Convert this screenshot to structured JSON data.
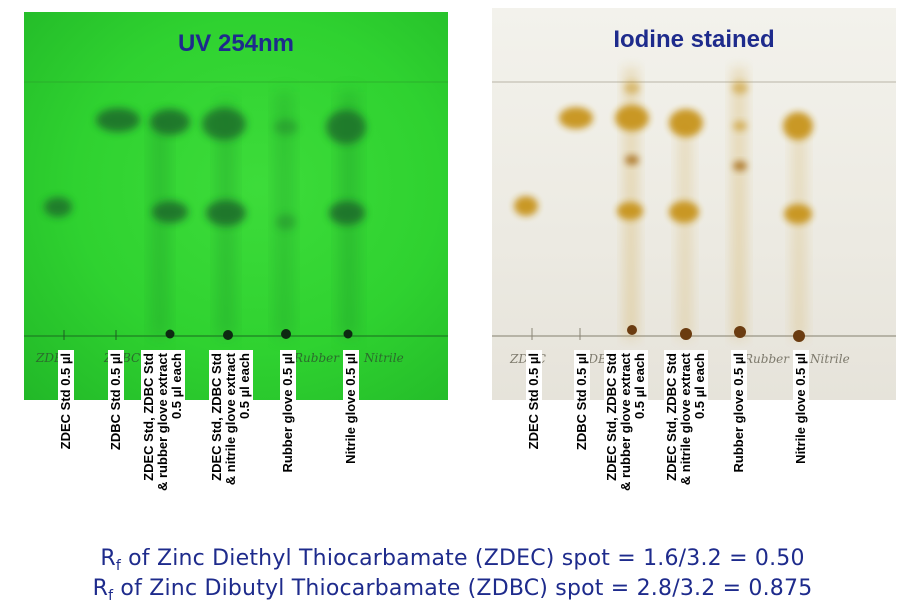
{
  "uv_panel": {
    "title": "UV 254nm",
    "handwriting": [
      "ZDEC",
      "ZDBC",
      "Rubber",
      "Nitrile"
    ],
    "colors": {
      "background": "#33d633",
      "spot": "#1f6b2a"
    },
    "lanes": [
      {
        "label": "ZDEC Std 0.5 µl"
      },
      {
        "label": "ZDBC Std 0.5 µl"
      },
      {
        "label": "ZDEC Std, ZDBC Std\n& rubber glove extract\n0.5 µl each"
      },
      {
        "label": "ZDEC Std, ZDBC Std\n& nitrile glove extract\n0.5 µl each"
      },
      {
        "label": "Rubber glove 0.5 µl"
      },
      {
        "label": "Nitrile glove 0.5 µl"
      }
    ]
  },
  "iodine_panel": {
    "title": "Iodine stained",
    "handwriting": [
      "ZDEC",
      "ZDBC",
      "Rubber",
      "Nitrile"
    ],
    "colors": {
      "background": "#eeece4",
      "spot": "#c8941e",
      "dark_spot": "#6b3c10"
    },
    "lanes": [
      {
        "label": "ZDEC Std 0.5 µl"
      },
      {
        "label": "ZDBC Std 0.5 µl"
      },
      {
        "label": "ZDEC Std, ZDBC Std\n& rubber glove extract\n0.5 µl each"
      },
      {
        "label": "ZDEC Std, ZDBC Std\n& nitrile glove extract\n0.5 µl each"
      },
      {
        "label": "Rubber glove 0.5 µl"
      },
      {
        "label": "Nitrile glove 0.5 µl"
      }
    ]
  },
  "results": {
    "zdec": {
      "prefix": "R",
      "sub": "f",
      "text": " of Zinc Diethyl Thiocarbamate (ZDEC) spot = 1.6/3.2 = 0.50"
    },
    "zdbc": {
      "prefix": "R",
      "sub": "f",
      "text": " of Zinc Dibutyl Thiocarbamate (ZDBC) spot = 2.8/3.2 = 0.875"
    }
  },
  "text_color": "#1e2b8c"
}
